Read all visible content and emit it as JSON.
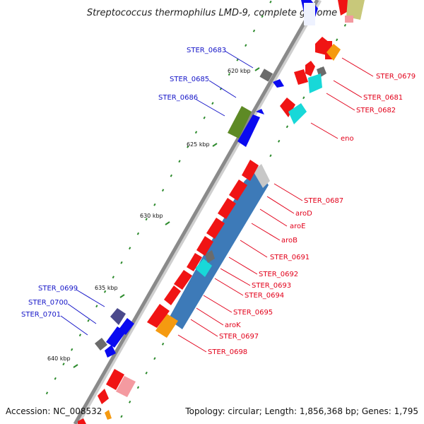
{
  "title": "Streptococcus thermophilus LMD-9, complete genome",
  "footer": {
    "accession": "Accession: NC_008532",
    "summary": "Topology: circular; Length: 1,856,368 bp; Genes: 1,795"
  },
  "colors": {
    "background": "#ffffff",
    "backbone": "#8a8a8a",
    "tick": "#2e8b2e",
    "label_forward": "#1515c8",
    "label_reverse": "#e2001a",
    "gene_red": "#f01414",
    "gene_pink": "#f49aa0",
    "gene_blue": "#0a0af0",
    "gene_gray": "#6b6b6b",
    "gene_lightgray": "#c8c8c8",
    "gene_steelblue": "#3d7ab8",
    "gene_cyan": "#18d8d8",
    "gene_orange": "#f59a10",
    "gene_olive": "#5e8a25",
    "gene_darkslate": "#4b4a8c",
    "gene_khaki": "#c8c87a"
  },
  "kbp_labels": [
    "620 kbp",
    "625 kbp",
    "630 kbp",
    "635 kbp",
    "640 kbp"
  ],
  "forward_labels": [
    "STER_0683",
    "STER_0685",
    "STER_0686",
    "STER_0699",
    "STER_0700",
    "STER_0701"
  ],
  "reverse_labels": [
    "STER_0679",
    "STER_0681",
    "STER_0682",
    "eno",
    "STER_0687",
    "aroD",
    "aroE",
    "aroB",
    "STER_0691",
    "STER_0692",
    "STER_0693",
    "STER_0694",
    "STER_0695",
    "aroK",
    "STER_0697",
    "STER_0698"
  ]
}
